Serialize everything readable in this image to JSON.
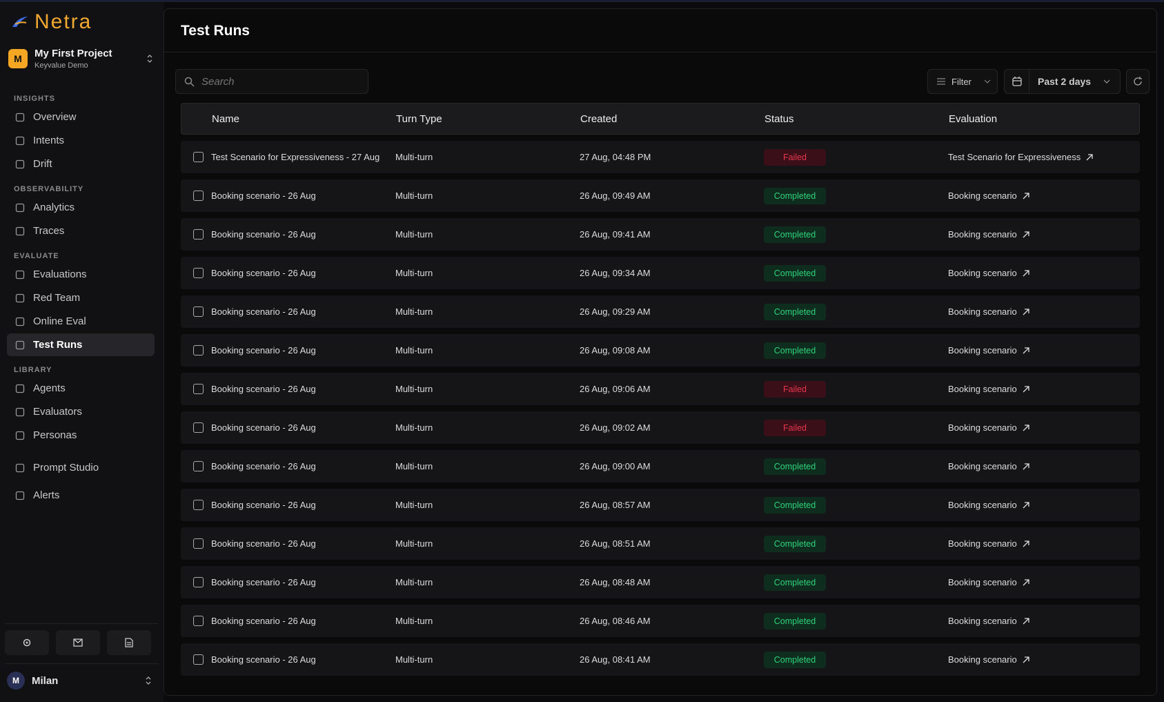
{
  "brand": "Netra",
  "project": {
    "initial": "M",
    "name": "My First Project",
    "org": "Keyvalue Demo"
  },
  "nav": [
    {
      "heading": "INSIGHTS",
      "items": [
        {
          "label": "Overview"
        },
        {
          "label": "Intents"
        },
        {
          "label": "Drift"
        }
      ]
    },
    {
      "heading": "OBSERVABILITY",
      "items": [
        {
          "label": "Analytics"
        },
        {
          "label": "Traces"
        }
      ]
    },
    {
      "heading": "EVALUATE",
      "items": [
        {
          "label": "Evaluations"
        },
        {
          "label": "Red Team"
        },
        {
          "label": "Online Eval"
        },
        {
          "label": "Test Runs",
          "active": true
        }
      ]
    },
    {
      "heading": "LIBRARY",
      "items": [
        {
          "label": "Agents"
        },
        {
          "label": "Evaluators"
        },
        {
          "label": "Personas"
        }
      ]
    }
  ],
  "extra_nav": [
    {
      "label": "Prompt Studio"
    },
    {
      "label": "Alerts"
    }
  ],
  "user": {
    "initial": "M",
    "name": "Milan"
  },
  "page_title": "Test Runs",
  "search_placeholder": "Search",
  "filter": "Filter",
  "date_range": "Past 2 days",
  "status_colors": {
    "Failed": {
      "text": "#e8364f",
      "bg": "#3a0f18"
    },
    "Completed": {
      "text": "#2ed47a",
      "bg": "#0f2d1f"
    }
  },
  "table": {
    "columns": [
      "Name",
      "Turn Type",
      "Created",
      "Status",
      "Evaluation"
    ],
    "rows": [
      [
        "Test Scenario for Expressiveness - 27 Aug",
        "Multi-turn",
        "27 Aug, 04:48 PM",
        "Failed",
        "Test Scenario for Expressiveness"
      ],
      [
        "Booking scenario - 26 Aug",
        "Multi-turn",
        "26 Aug, 09:49 AM",
        "Completed",
        "Booking scenario"
      ],
      [
        "Booking scenario - 26 Aug",
        "Multi-turn",
        "26 Aug, 09:41 AM",
        "Completed",
        "Booking scenario"
      ],
      [
        "Booking scenario - 26 Aug",
        "Multi-turn",
        "26 Aug, 09:34 AM",
        "Completed",
        "Booking scenario"
      ],
      [
        "Booking scenario - 26 Aug",
        "Multi-turn",
        "26 Aug, 09:29 AM",
        "Completed",
        "Booking scenario"
      ],
      [
        "Booking scenario - 26 Aug",
        "Multi-turn",
        "26 Aug, 09:08 AM",
        "Completed",
        "Booking scenario"
      ],
      [
        "Booking scenario - 26 Aug",
        "Multi-turn",
        "26 Aug, 09:06 AM",
        "Failed",
        "Booking scenario"
      ],
      [
        "Booking scenario - 26 Aug",
        "Multi-turn",
        "26 Aug, 09:02 AM",
        "Failed",
        "Booking scenario"
      ],
      [
        "Booking scenario - 26 Aug",
        "Multi-turn",
        "26 Aug, 09:00 AM",
        "Completed",
        "Booking scenario"
      ],
      [
        "Booking scenario - 26 Aug",
        "Multi-turn",
        "26 Aug, 08:57 AM",
        "Completed",
        "Booking scenario"
      ],
      [
        "Booking scenario - 26 Aug",
        "Multi-turn",
        "26 Aug, 08:51 AM",
        "Completed",
        "Booking scenario"
      ],
      [
        "Booking scenario - 26 Aug",
        "Multi-turn",
        "26 Aug, 08:48 AM",
        "Completed",
        "Booking scenario"
      ],
      [
        "Booking scenario - 26 Aug",
        "Multi-turn",
        "26 Aug, 08:46 AM",
        "Completed",
        "Booking scenario"
      ],
      [
        "Booking scenario - 26 Aug",
        "Multi-turn",
        "26 Aug, 08:41 AM",
        "Completed",
        "Booking scenario"
      ]
    ]
  }
}
